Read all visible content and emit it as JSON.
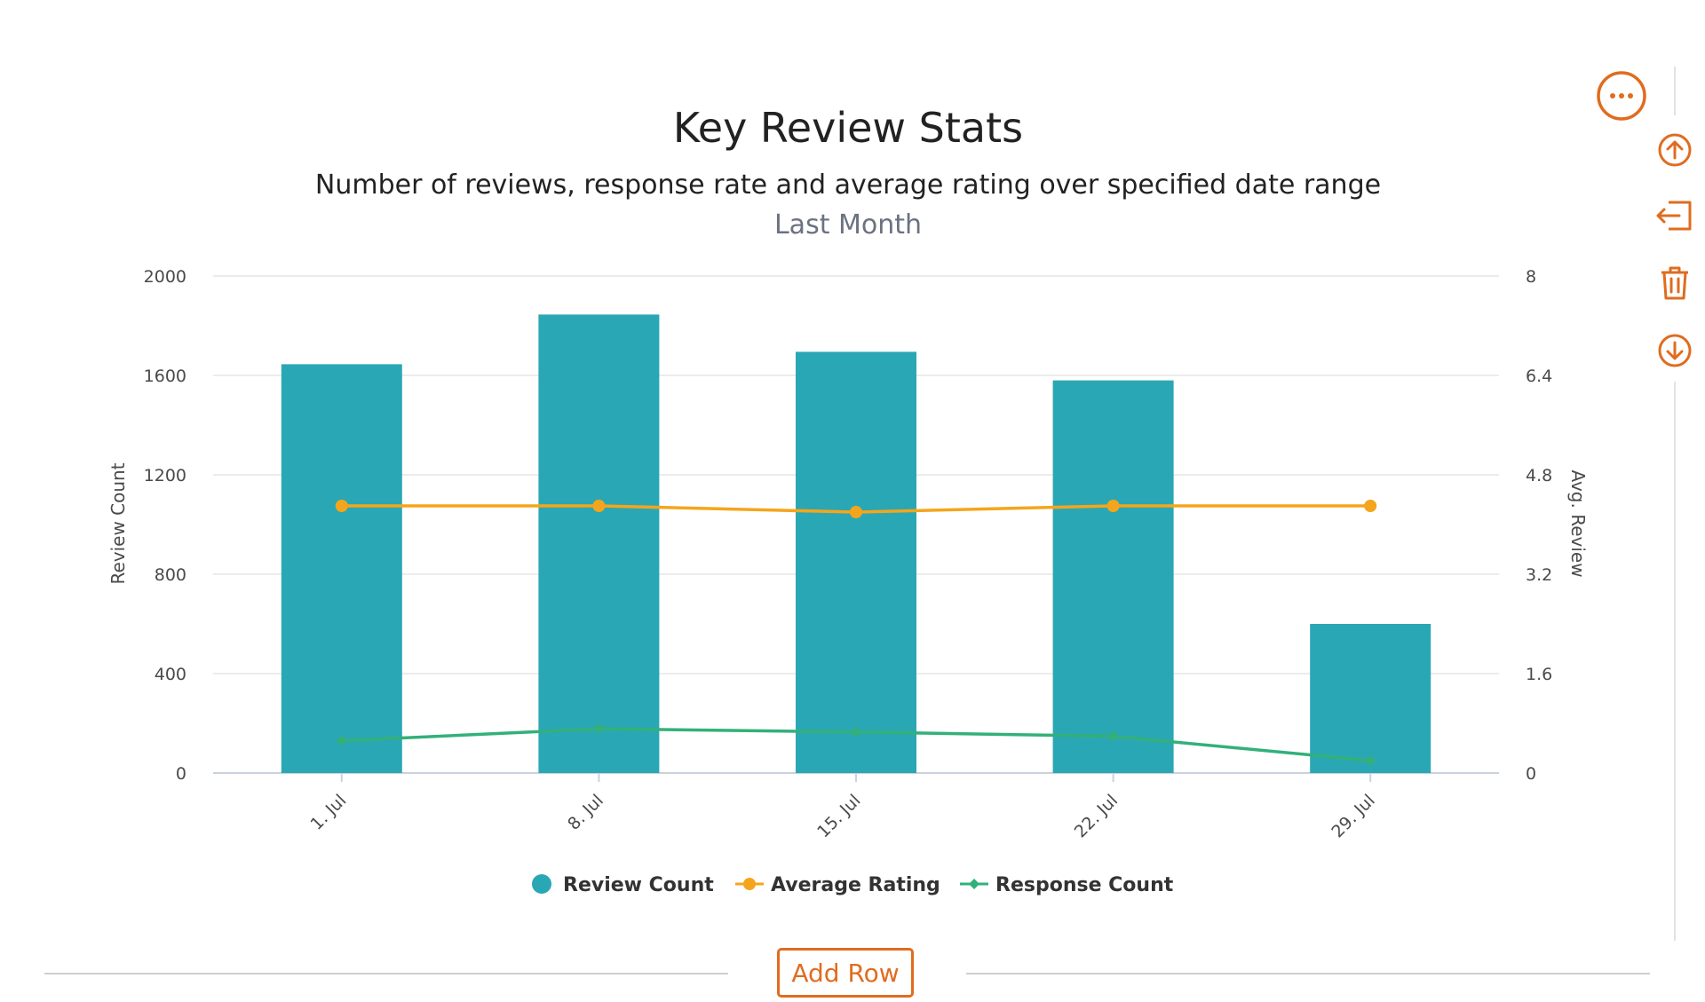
{
  "chart_data": {
    "type": "bar",
    "title": "Key Review Stats",
    "subtitle": "Number of reviews, response rate and average rating over specified date range",
    "subtitle2": "Last Month",
    "categories": [
      "1. Jul",
      "8. Jul",
      "15. Jul",
      "22. Jul",
      "29. Jul"
    ],
    "y_left": {
      "label": "Review Count",
      "ylim": [
        0,
        2000
      ],
      "ticks": [
        "0",
        "400",
        "800",
        "1200",
        "1600",
        "2000"
      ]
    },
    "y_right": {
      "label": "Avg. Review",
      "ylim": [
        0,
        8
      ],
      "ticks": [
        "0",
        "1.6",
        "3.2",
        "4.8",
        "6.4",
        "8"
      ]
    },
    "series": [
      {
        "name": "Review Count",
        "type": "bar",
        "axis": "left",
        "color": "#2aa7b4",
        "values": [
          1645,
          1845,
          1695,
          1580,
          600
        ]
      },
      {
        "name": "Average Rating",
        "type": "line",
        "axis": "right",
        "color": "#f5a51b",
        "values": [
          4.3,
          4.3,
          4.2,
          4.3,
          4.3
        ]
      },
      {
        "name": "Response Count",
        "type": "line",
        "axis": "left",
        "color": "#33b07a",
        "values": [
          130,
          178,
          165,
          148,
          50
        ]
      }
    ],
    "grid": true,
    "legend_position": "bottom-center"
  },
  "ui": {
    "add_row_label": "Add Row",
    "accent_color": "#e06c1f",
    "tools": [
      "more-icon",
      "move-up-icon",
      "move-out-icon",
      "trash-icon",
      "move-down-icon"
    ]
  }
}
